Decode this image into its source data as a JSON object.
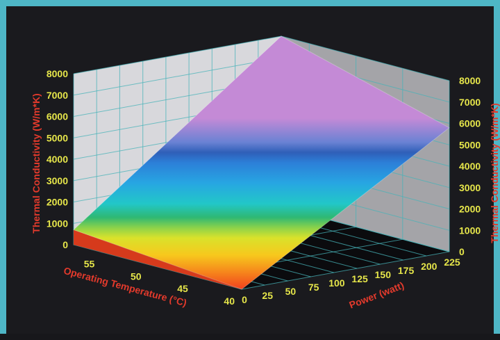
{
  "chart_data": {
    "type": "surface3d",
    "title": "",
    "x_axis": {
      "label": "Power (watt)",
      "ticks": [
        0,
        25,
        50,
        75,
        100,
        125,
        150,
        175,
        200,
        225
      ],
      "range": [
        0,
        225
      ]
    },
    "y_axis": {
      "label": "Operating Temperature (°C)",
      "ticks": [
        40,
        45,
        50,
        55
      ],
      "range": [
        40,
        58
      ]
    },
    "z_axis": {
      "label": "Thermal Conductivity (W/m*K)",
      "ticks": [
        0,
        1000,
        2000,
        3000,
        4000,
        5000,
        6000,
        7000,
        8000
      ],
      "range": [
        0,
        8000
      ]
    },
    "z_axis_right": {
      "label": "Thermal Conductivity (W/m*K)",
      "ticks": [
        0,
        1000,
        2000,
        3000,
        4000,
        5000,
        6000,
        7000,
        8000
      ]
    },
    "surface": {
      "x": [
        0,
        225
      ],
      "y": [
        40,
        58
      ],
      "z": [
        [
          0,
          5800
        ],
        [
          700,
          8000
        ]
      ],
      "note_z_rows": "rows follow y (40, 58), columns follow x (0, 225)"
    },
    "grid": true,
    "colors": {
      "background": "#1a1a1e",
      "border": "#4eb6c6",
      "pane_back": "#d8d8dc",
      "pane_side": "#a4a4a8",
      "floor": "#0b0b0e",
      "grid": "#47b3b8",
      "tick_text": "#e6e64a",
      "axis_title": "#e33a2c"
    }
  }
}
